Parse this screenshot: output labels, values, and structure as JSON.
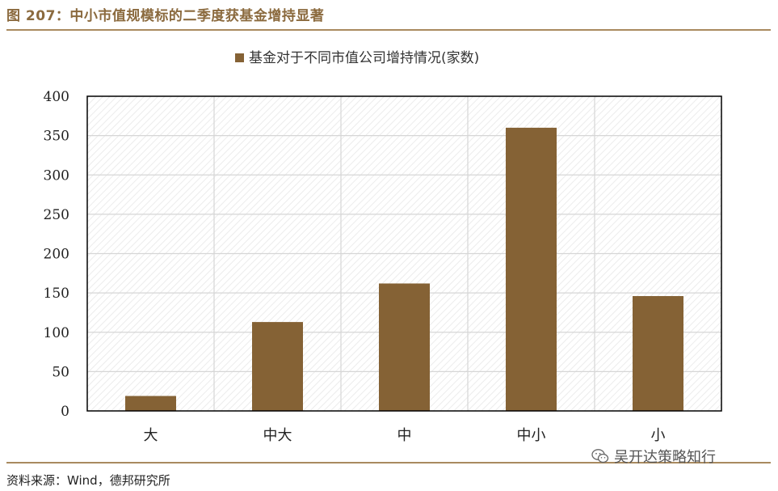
{
  "figure": {
    "title": "图 207：中小市值规模标的二季度获基金增持显著",
    "source": "资料来源：Wind，德邦研究所",
    "watermark": "吴开达策略知行",
    "watermark_icon": "wechat-icon"
  },
  "colors": {
    "bar": "#856235",
    "title": "#8B6A3E",
    "rule": "#A98A5F"
  },
  "chart_data": {
    "type": "bar",
    "categories": [
      "大",
      "中大",
      "中",
      "中小",
      "小"
    ],
    "series": [
      {
        "name": "基金对于不同市值公司增持情况(家数)",
        "values": [
          19,
          113,
          162,
          360,
          146
        ]
      }
    ],
    "title": "",
    "xlabel": "",
    "ylabel": "",
    "ylim": [
      0,
      400
    ],
    "yticks": [
      "0",
      "50",
      "100",
      "150",
      "200",
      "250",
      "300",
      "350",
      "400"
    ],
    "grid": true,
    "legend_position": "top"
  }
}
